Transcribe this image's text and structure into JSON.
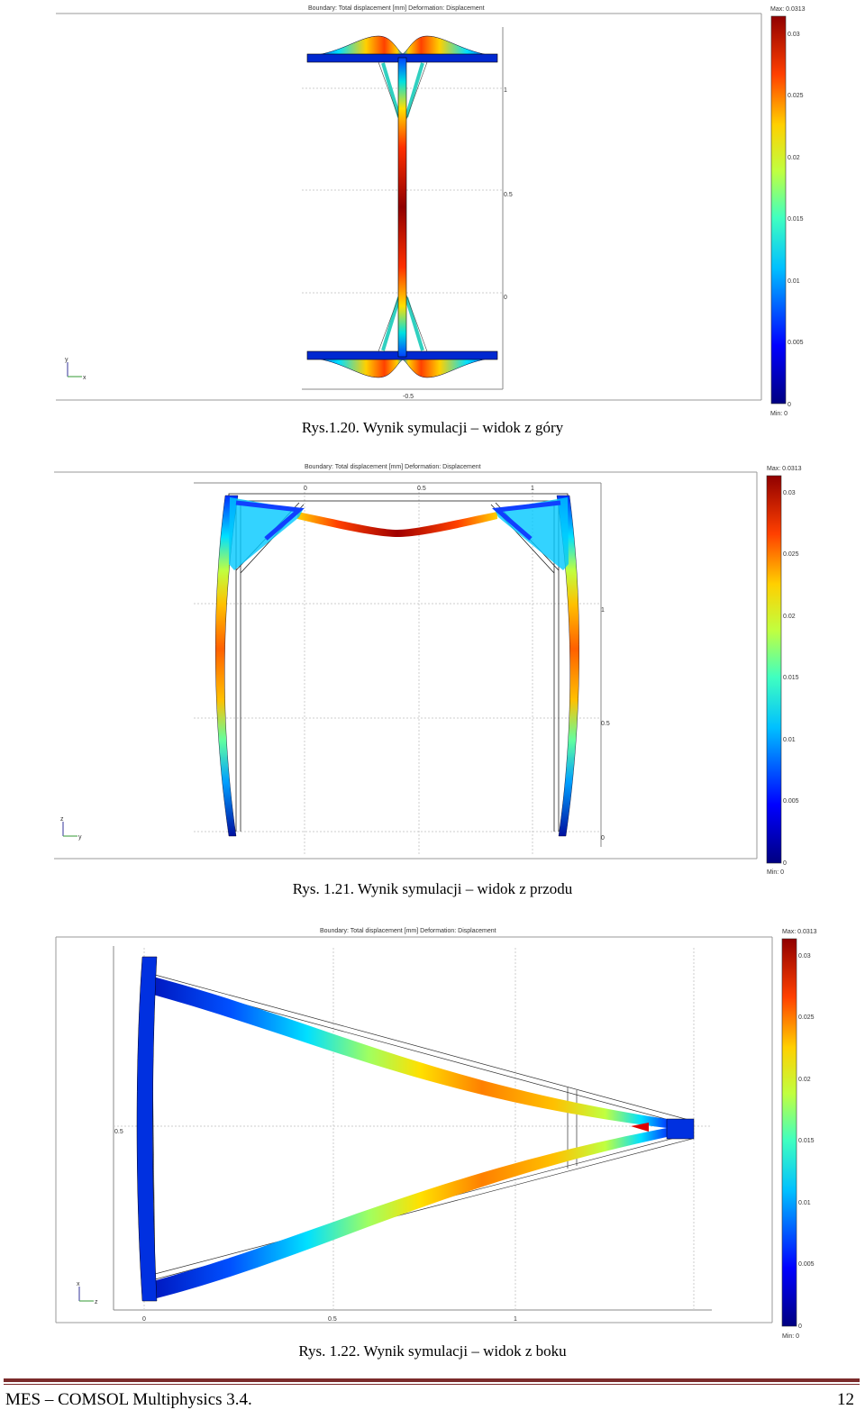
{
  "figures": [
    {
      "plot_title": "Boundary: Total displacement [mm]   Deformation: Displacement",
      "max_label": "Max: 0.0313",
      "min_label": "Min: 0",
      "colorbar_ticks": [
        "0.03",
        "0.025",
        "0.02",
        "0.015",
        "0.01",
        "0.005",
        "0"
      ],
      "axis_ticks": [
        "1",
        "0.5",
        "0",
        "-0.5"
      ],
      "triad": [
        "y",
        "x"
      ],
      "caption": "Rys.1.20. Wynik symulacji – widok z góry"
    },
    {
      "plot_title": "Boundary: Total displacement [mm]   Deformation: Displacement",
      "max_label": "Max: 0.0313",
      "min_label": "Min: 0",
      "colorbar_ticks": [
        "0.03",
        "0.025",
        "0.02",
        "0.015",
        "0.01",
        "0.005",
        "0"
      ],
      "axis_ticks_top": [
        "0",
        "0.5",
        "1"
      ],
      "axis_ticks_right": [
        "1",
        "0.5",
        "0"
      ],
      "triad": [
        "z",
        "y"
      ],
      "caption": "Rys. 1.21. Wynik symulacji – widok z przodu"
    },
    {
      "plot_title": "Boundary: Total displacement [mm]   Deformation: Displacement",
      "max_label": "Max: 0.0313",
      "min_label": "Min: 0",
      "colorbar_ticks": [
        "0.03",
        "0.025",
        "0.02",
        "0.015",
        "0.01",
        "0.005",
        "0"
      ],
      "axis_ticks_bottom": [
        "0",
        "0.5",
        "1"
      ],
      "axis_ticks_left": [
        "0.5"
      ],
      "triad": [
        "x",
        "z"
      ],
      "caption": "Rys. 1.22. Wynik symulacji – widok z boku"
    }
  ],
  "footer": {
    "left": "MES – COMSOL Multiphysics 3.4.",
    "page_number": "12"
  },
  "colormap": [
    "#000080",
    "#0000ff",
    "#0080ff",
    "#00ffff",
    "#80ff80",
    "#ffff00",
    "#ff8000",
    "#ff0000",
    "#800000"
  ]
}
